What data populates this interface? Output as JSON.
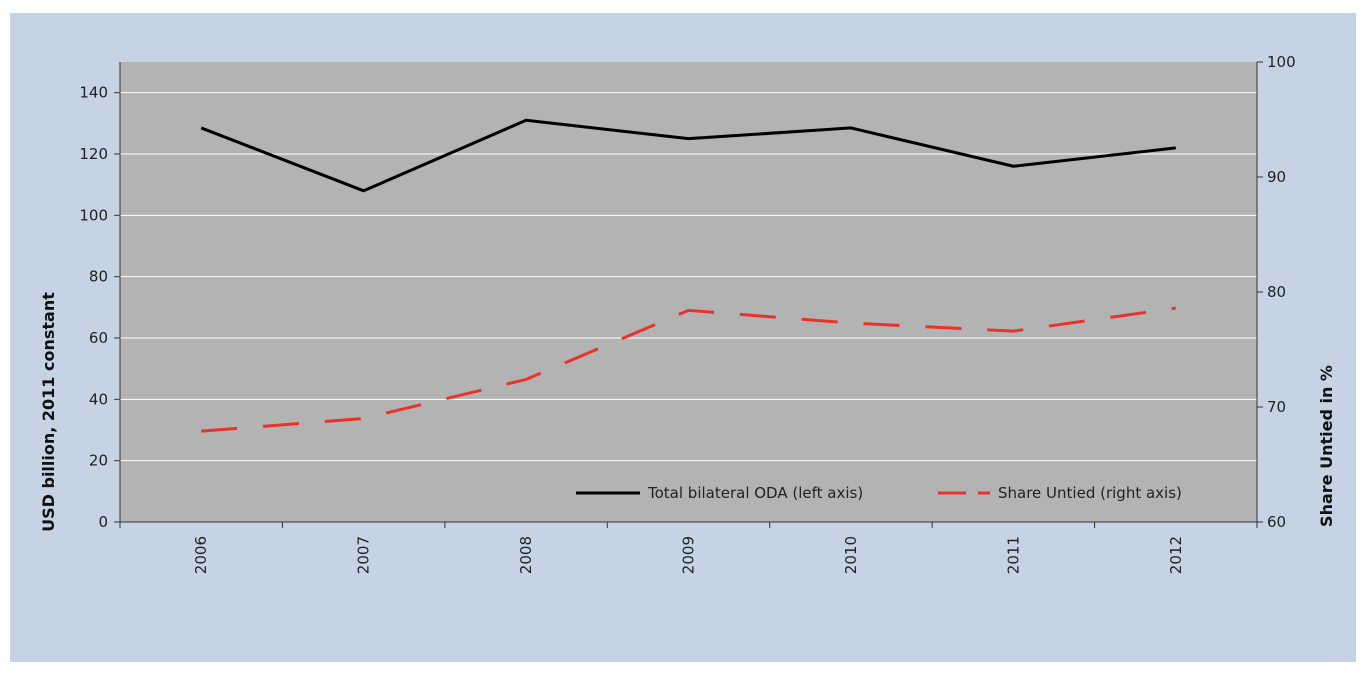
{
  "chart_data": {
    "type": "line",
    "categories": [
      "2006",
      "2007",
      "2008",
      "2009",
      "2010",
      "2011",
      "2012"
    ],
    "series": [
      {
        "name": "Total bilateral ODA (left axis)",
        "axis": "left",
        "color": "#000000",
        "dash": "solid",
        "values": [
          128.5,
          108,
          131,
          125,
          128.5,
          116,
          122
        ]
      },
      {
        "name": "Share Untied (right axis)",
        "axis": "right",
        "color": "#e8332a",
        "dash": "dashed",
        "values": [
          67.9,
          69.0,
          72.4,
          78.4,
          77.3,
          76.6,
          78.6
        ]
      }
    ],
    "ylabel": "USD billion, 2011 constant",
    "ylim": [
      0,
      150
    ],
    "yticks": [
      0,
      20,
      40,
      60,
      80,
      100,
      120,
      140
    ],
    "y2label": "Share Untied in %",
    "y2lim": [
      60,
      100
    ],
    "y2ticks": [
      60,
      70,
      80,
      90,
      100
    ],
    "grid": true,
    "plot_background": "#b3b3b3",
    "figure_background": "#c5d3e5",
    "legend_placement": "bottom-right"
  }
}
